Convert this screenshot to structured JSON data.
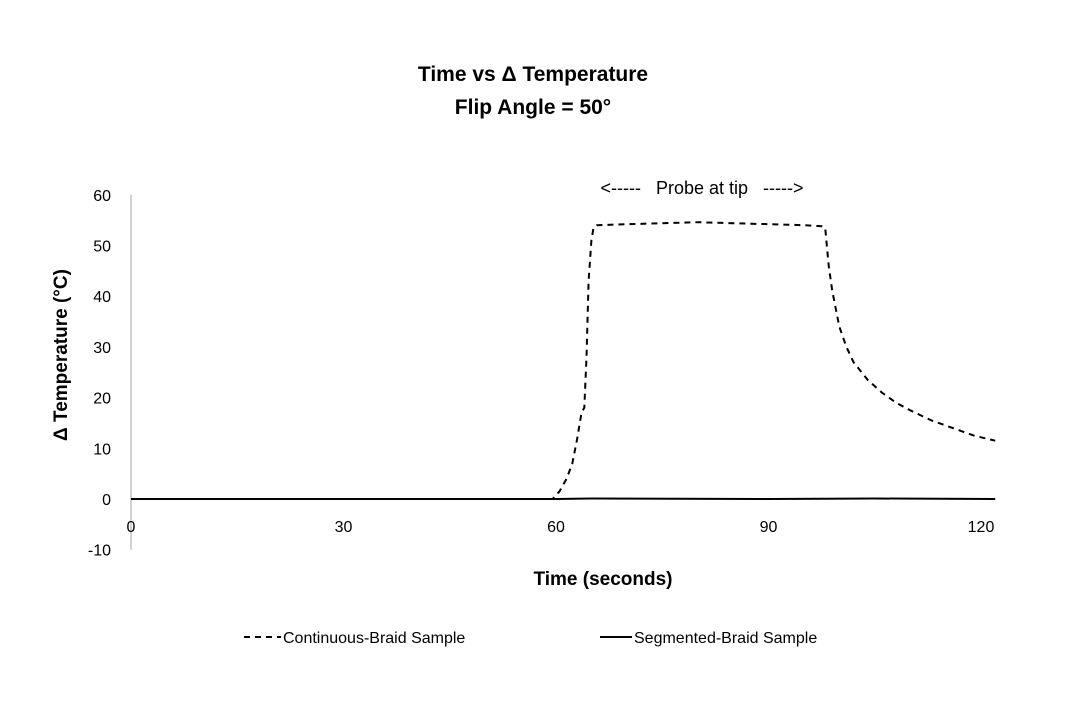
{
  "chart_data": {
    "type": "line",
    "title": "Time vs Δ Temperature",
    "subtitle": "Flip Angle = 50°",
    "xlabel": "Time (seconds)",
    "ylabel": "Δ Temperature (°C)",
    "xlim": [
      0,
      122
    ],
    "ylim": [
      -10,
      60
    ],
    "xticks": [
      0,
      30,
      60,
      90,
      120
    ],
    "yticks": [
      -10,
      0,
      10,
      20,
      30,
      40,
      50,
      60
    ],
    "grid": false,
    "legend": "bottom",
    "annotation": "<-----   Probe at tip   ----->",
    "series": [
      {
        "name": "Continuous-Braid Sample",
        "style": "dashed",
        "color": "#000000",
        "x": [
          0,
          30,
          59.5,
          60.5,
          61.5,
          62.3,
          63.0,
          63.6,
          64.0,
          64.3,
          64.6,
          64.8,
          65.0,
          65.3,
          65.8,
          70,
          75,
          80,
          85,
          90,
          95,
          97.5,
          98,
          98.5,
          99,
          100,
          101,
          102,
          104,
          106,
          108,
          110,
          113,
          116,
          119,
          122
        ],
        "y": [
          0,
          0,
          0,
          1.5,
          4,
          7,
          12,
          17,
          18,
          28,
          43,
          47,
          51,
          53.5,
          54,
          54.2,
          54.4,
          54.6,
          54.4,
          54.2,
          54,
          53.8,
          53.5,
          46,
          41,
          34,
          30,
          27,
          23.5,
          21,
          19,
          17.5,
          15.5,
          14,
          12.5,
          11.5
        ]
      },
      {
        "name": "Segmented-Braid Sample",
        "style": "solid",
        "color": "#000000",
        "x": [
          0,
          30,
          60,
          65,
          90,
          105,
          122
        ],
        "y": [
          0,
          0,
          0,
          0.1,
          0,
          0.1,
          0
        ]
      }
    ]
  }
}
